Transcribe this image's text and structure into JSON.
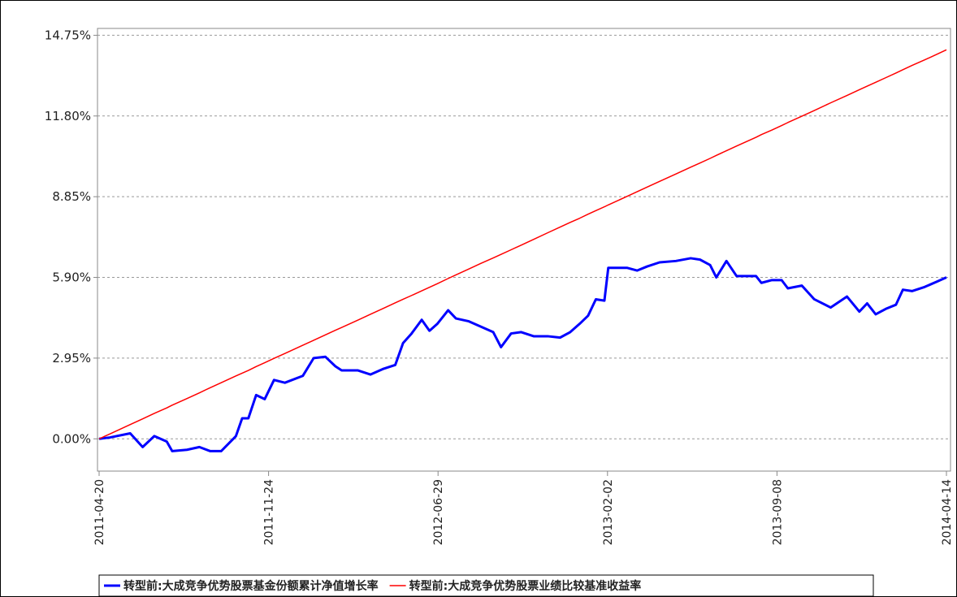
{
  "chart_data": {
    "type": "line",
    "x": [
      "2011-04-20",
      "2011-05-04",
      "2011-05-30",
      "2011-06-15",
      "2011-06-30",
      "2011-07-16",
      "2011-07-23",
      "2011-08-11",
      "2011-08-27",
      "2011-09-10",
      "2011-09-24",
      "2011-10-13",
      "2011-10-21",
      "2011-10-29",
      "2011-11-08",
      "2011-11-19",
      "2011-12-01",
      "2011-12-15",
      "2012-01-07",
      "2012-01-21",
      "2012-02-05",
      "2012-02-18",
      "2012-02-26",
      "2012-03-18",
      "2012-04-03",
      "2012-04-19",
      "2012-05-05",
      "2012-05-15",
      "2012-05-26",
      "2012-06-08",
      "2012-06-18",
      "2012-06-28",
      "2012-07-12",
      "2012-07-22",
      "2012-08-07",
      "2012-08-23",
      "2012-09-08",
      "2012-09-18",
      "2012-10-01",
      "2012-10-14",
      "2012-10-30",
      "2012-11-17",
      "2012-12-03",
      "2012-12-16",
      "2012-12-28",
      "2013-01-08",
      "2013-01-18",
      "2013-01-29",
      "2013-02-03",
      "2013-02-27",
      "2013-03-12",
      "2013-03-25",
      "2013-04-10",
      "2013-05-01",
      "2013-05-20",
      "2013-06-01",
      "2013-06-14",
      "2013-06-22",
      "2013-07-05",
      "2013-07-18",
      "2013-08-12",
      "2013-08-19",
      "2013-09-01",
      "2013-09-14",
      "2013-09-22",
      "2013-10-10",
      "2013-10-26",
      "2013-11-16",
      "2013-12-07",
      "2013-12-23",
      "2014-01-02",
      "2014-01-13",
      "2014-01-26",
      "2014-02-08",
      "2014-02-17",
      "2014-03-01",
      "2014-03-17",
      "2014-04-02",
      "2014-04-14"
    ],
    "series": [
      {
        "name": "转型前:大成竞争优势股票基金份额累计净值增长率",
        "color": "#0000ff",
        "values": [
          0,
          0.05,
          0.2,
          -0.3,
          0.1,
          -0.1,
          -0.45,
          -0.4,
          -0.3,
          -0.45,
          -0.45,
          0.1,
          0.75,
          0.75,
          1.6,
          1.45,
          2.15,
          2.05,
          2.3,
          2.95,
          3.0,
          2.65,
          2.5,
          2.5,
          2.35,
          2.55,
          2.7,
          3.5,
          3.85,
          4.35,
          3.95,
          4.2,
          4.7,
          4.4,
          4.3,
          4.1,
          3.9,
          3.35,
          3.85,
          3.9,
          3.75,
          3.75,
          3.7,
          3.9,
          4.2,
          4.5,
          5.1,
          5.05,
          6.25,
          6.25,
          6.15,
          6.3,
          6.45,
          6.5,
          6.6,
          6.55,
          6.35,
          5.9,
          6.5,
          5.95,
          5.95,
          5.7,
          5.8,
          5.8,
          5.5,
          5.6,
          5.1,
          4.8,
          5.2,
          4.65,
          4.95,
          4.55,
          4.75,
          4.9,
          5.45,
          5.4,
          5.55,
          5.75,
          5.9
        ]
      },
      {
        "name": "转型前:大成竞争优势股票业绩比较基准收益率",
        "color": "#ff0000",
        "values": [
          0,
          0.18,
          0.52,
          0.73,
          0.93,
          1.13,
          1.23,
          1.47,
          1.68,
          1.87,
          2.05,
          2.3,
          2.4,
          2.5,
          2.64,
          2.78,
          2.94,
          3.12,
          3.42,
          3.6,
          3.8,
          3.97,
          4.07,
          4.34,
          4.55,
          4.76,
          4.97,
          5.1,
          5.24,
          5.41,
          5.54,
          5.67,
          5.86,
          5.99,
          6.2,
          6.41,
          6.61,
          6.74,
          6.91,
          7.08,
          7.29,
          7.53,
          7.74,
          7.91,
          8.06,
          8.21,
          8.34,
          8.48,
          8.55,
          8.86,
          9.03,
          9.2,
          9.41,
          9.68,
          9.93,
          10.08,
          10.25,
          10.36,
          10.53,
          10.7,
          11.02,
          11.12,
          11.28,
          11.45,
          11.56,
          11.79,
          12.0,
          12.28,
          12.55,
          12.76,
          12.89,
          13.03,
          13.2,
          13.37,
          13.49,
          13.65,
          13.85,
          14.06,
          14.22
        ]
      }
    ],
    "xlim": [
      "2011-04-20",
      "2014-04-14"
    ],
    "xticks": [
      "2011-04-20",
      "2011-11-24",
      "2012-06-29",
      "2013-02-02",
      "2013-09-08",
      "2014-04-14"
    ],
    "ylim": [
      -1.18,
      15.0
    ],
    "yticks": [
      {
        "value": 0,
        "label": "0.00%"
      },
      {
        "value": 2.95,
        "label": "2.95%"
      },
      {
        "value": 5.9,
        "label": "5.90%"
      },
      {
        "value": 8.85,
        "label": "8.85%"
      },
      {
        "value": 11.8,
        "label": "11.80%"
      },
      {
        "value": 14.75,
        "label": "14.75%"
      }
    ],
    "grid": true
  }
}
